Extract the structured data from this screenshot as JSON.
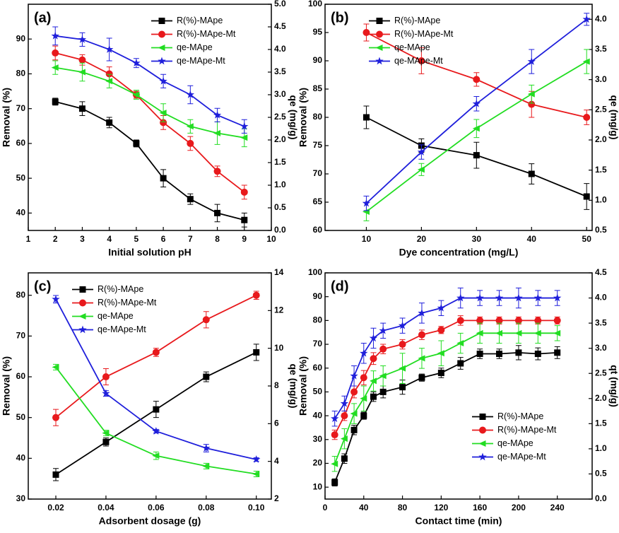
{
  "chart_data": [
    {
      "type": "line",
      "panel_label": "(a)",
      "xlabel": "Initial solution pH",
      "ylabel": "Removal (%)",
      "y2label": "qe (mg/g)",
      "xlim": [
        1,
        10
      ],
      "xticks": [
        1,
        2,
        3,
        4,
        5,
        6,
        7,
        8,
        9,
        10
      ],
      "ylim": [
        35,
        100
      ],
      "yticks": [
        40,
        50,
        60,
        70,
        80,
        90
      ],
      "y2lim": [
        0,
        5
      ],
      "y2ticks": [
        {
          "value": 0,
          "label": "0.0"
        },
        0.5,
        {
          "value": 1,
          "label": "1.0"
        },
        1.5,
        {
          "value": 2,
          "label": "2.0"
        },
        2.5,
        {
          "value": 3,
          "label": "3.0"
        },
        3.5,
        {
          "value": 4,
          "label": "4.0"
        },
        4.5,
        {
          "value": 5,
          "label": "5.0"
        }
      ],
      "legend": "upper right",
      "x": [
        2,
        3,
        4,
        5,
        6,
        7,
        8,
        9
      ],
      "series": [
        {
          "name": "R(%)-MApe",
          "color": "#000000",
          "marker": "square",
          "axis": "y",
          "values": [
            72,
            70,
            66,
            60,
            50,
            44,
            40,
            38
          ],
          "errors": [
            1,
            2,
            1.5,
            1,
            2.5,
            1.5,
            2.5,
            2
          ]
        },
        {
          "name": "R(%)-MApe-Mt",
          "color": "#e8191c",
          "marker": "circle",
          "axis": "y",
          "values": [
            86,
            84,
            80,
            74,
            66,
            60,
            52,
            46
          ],
          "errors": [
            2,
            1.5,
            2,
            1,
            2,
            2,
            1.5,
            2
          ]
        },
        {
          "name": "qe-MApe",
          "color": "#22dd22",
          "marker": "triangle",
          "axis": "y2",
          "values": [
            3.6,
            3.5,
            3.3,
            3.0,
            2.6,
            2.3,
            2.15,
            2.05
          ],
          "errors": [
            0.15,
            0.2,
            0.15,
            0.1,
            0.2,
            0.15,
            0.25,
            0.2
          ]
        },
        {
          "name": "qe-MApe-Mt",
          "color": "#1f1fdb",
          "marker": "star",
          "axis": "y2",
          "values": [
            4.3,
            4.22,
            4.0,
            3.7,
            3.3,
            3.0,
            2.55,
            2.3
          ],
          "errors": [
            0.2,
            0.15,
            0.25,
            0.1,
            0.15,
            0.2,
            0.15,
            0.15
          ]
        }
      ]
    },
    {
      "type": "line",
      "panel_label": "(b)",
      "xlabel": "Dye concentration (mg/L)",
      "ylabel": "Removal (%)",
      "y2label": "qe (mg/g)",
      "xlim": [
        2.5,
        51
      ],
      "xticks": [
        10,
        20,
        30,
        40,
        50
      ],
      "ylim": [
        60,
        100
      ],
      "yticks": [
        60,
        65,
        70,
        75,
        80,
        85,
        90,
        95,
        100
      ],
      "y2lim": [
        0.5,
        4.25
      ],
      "y2ticks": [
        0.5,
        {
          "value": 1,
          "label": "1.0"
        },
        1.5,
        {
          "value": 2,
          "label": "2.0"
        },
        2.5,
        {
          "value": 3,
          "label": "3.0"
        },
        3.5,
        {
          "value": 4,
          "label": "4.0"
        }
      ],
      "legend": "upper left",
      "x": [
        10,
        20,
        30,
        40,
        50
      ],
      "series": [
        {
          "name": "R(%)-MApe",
          "color": "#000000",
          "marker": "square",
          "axis": "y",
          "values": [
            80,
            75,
            73.3,
            70,
            66
          ],
          "errors": [
            2,
            1.2,
            2.3,
            1.8,
            2.3
          ]
        },
        {
          "name": "R(%)-MApe-Mt",
          "color": "#e8191c",
          "marker": "circle",
          "axis": "y",
          "values": [
            95,
            90,
            86.7,
            82.3,
            80
          ],
          "errors": [
            1.5,
            2.3,
            1.2,
            2.3,
            1.3
          ]
        },
        {
          "name": "qe-MApe",
          "color": "#22dd22",
          "marker": "triangle",
          "axis": "y2",
          "values": [
            0.81,
            1.51,
            2.19,
            2.76,
            3.3
          ],
          "errors": [
            0.15,
            0.1,
            0.15,
            0.15,
            0.2
          ]
        },
        {
          "name": "qe-MApe-Mt",
          "color": "#1f1fdb",
          "marker": "star",
          "axis": "y2",
          "values": [
            0.95,
            1.8,
            2.6,
            3.3,
            4.0
          ],
          "errors": [
            0.12,
            0.12,
            0.12,
            0.2,
            0.1
          ]
        }
      ]
    },
    {
      "type": "line",
      "panel_label": "(c)",
      "xlabel": "Adsorbent dosage (g)",
      "ylabel": "Removal (%)",
      "y2label": "qe (mg/g)",
      "xlim": [
        0.009,
        0.106
      ],
      "xticks": [
        0.02,
        0.04,
        0.06,
        0.08,
        {
          "value": 0.1,
          "label": "0.10"
        }
      ],
      "ylim": [
        30,
        85.5
      ],
      "yticks": [
        30,
        40,
        50,
        60,
        70,
        80
      ],
      "y2lim": [
        2,
        14
      ],
      "y2ticks": [
        2,
        4,
        6,
        8,
        10,
        12,
        14
      ],
      "legend": "upper left",
      "x": [
        0.02,
        0.04,
        0.06,
        0.08,
        0.1
      ],
      "series": [
        {
          "name": "R(%)-MApe",
          "color": "#000000",
          "marker": "square",
          "axis": "y",
          "values": [
            36,
            44,
            52,
            60,
            66
          ],
          "errors": [
            1.5,
            1,
            2,
            1.2,
            2
          ]
        },
        {
          "name": "R(%)-MApe-Mt",
          "color": "#e8191c",
          "marker": "circle",
          "axis": "y",
          "values": [
            50,
            60,
            66,
            74,
            80
          ],
          "errors": [
            2,
            2,
            1,
            2,
            1
          ]
        },
        {
          "name": "qe-MApe",
          "color": "#22dd22",
          "marker": "triangle",
          "axis": "y2",
          "values": [
            9.0,
            5.5,
            4.3,
            3.75,
            3.33
          ],
          "errors": [
            0.15,
            0.15,
            0.2,
            0.15,
            0.15
          ]
        },
        {
          "name": "qe-MApe-Mt",
          "color": "#1f1fdb",
          "marker": "star",
          "axis": "y2",
          "values": [
            12.6,
            7.6,
            5.6,
            4.7,
            4.1
          ],
          "errors": [
            0.2,
            0.15,
            0.1,
            0.2,
            0.1
          ]
        }
      ]
    },
    {
      "type": "line",
      "panel_label": "(d)",
      "xlabel": "Contact time (min)",
      "ylabel": "Removal (%)",
      "y2label": "qt (mg/g)",
      "xlim": [
        0,
        276
      ],
      "xticks": [
        0,
        40,
        80,
        120,
        160,
        200,
        240
      ],
      "ylim": [
        5,
        100
      ],
      "yticks": [
        10,
        20,
        30,
        40,
        50,
        60,
        70,
        80,
        90,
        100
      ],
      "y2lim": [
        0,
        4.5
      ],
      "y2ticks": [
        {
          "value": 0,
          "label": "0.0"
        },
        0.5,
        {
          "value": 1,
          "label": "1.0"
        },
        1.5,
        {
          "value": 2,
          "label": "2.0"
        },
        2.5,
        {
          "value": 3,
          "label": "3.0"
        },
        3.5,
        {
          "value": 4,
          "label": "4.0"
        },
        4.5
      ],
      "legend": "lower right",
      "x": [
        10,
        20,
        30,
        40,
        50,
        60,
        80,
        100,
        120,
        140,
        160,
        180,
        200,
        220,
        240
      ],
      "series": [
        {
          "name": "R(%)-MApe",
          "color": "#000000",
          "marker": "square",
          "axis": "y",
          "values": [
            12,
            22,
            34,
            40,
            48,
            50,
            52,
            56,
            58,
            62,
            66,
            66,
            66.5,
            66,
            66.5
          ],
          "errors": [
            1.5,
            2,
            2,
            1.5,
            2,
            2.5,
            3,
            1.5,
            2,
            2.5,
            2,
            2,
            3,
            2.5,
            2.5
          ]
        },
        {
          "name": "R(%)-MApe-Mt",
          "color": "#e8191c",
          "marker": "circle",
          "axis": "y",
          "values": [
            32,
            40,
            50,
            56,
            64,
            68,
            70,
            74,
            76,
            80,
            80,
            80,
            80,
            80,
            80
          ],
          "errors": [
            2,
            2,
            2.5,
            3,
            2.5,
            2,
            2,
            2,
            1.5,
            2,
            1.5,
            1.5,
            1.5,
            1.5,
            1.5
          ]
        },
        {
          "name": "qe-MApe",
          "color": "#22dd22",
          "marker": "triangle",
          "axis": "y2",
          "values": [
            0.7,
            1.2,
            1.7,
            2.0,
            2.35,
            2.45,
            2.6,
            2.8,
            2.9,
            3.1,
            3.3,
            3.3,
            3.3,
            3.3,
            3.3
          ],
          "errors": [
            0.15,
            0.2,
            0.2,
            0.25,
            0.2,
            0.2,
            0.3,
            0.2,
            0.25,
            0.2,
            0.2,
            0.2,
            0.2,
            0.2,
            0.15
          ]
        },
        {
          "name": "qe-MApe-Mt",
          "color": "#1f1fdb",
          "marker": "star",
          "axis": "y2",
          "values": [
            1.6,
            1.9,
            2.45,
            2.9,
            3.2,
            3.35,
            3.45,
            3.7,
            3.8,
            4.0,
            4.0,
            4.0,
            4.0,
            4.0,
            4.0
          ],
          "errors": [
            0.15,
            0.15,
            0.2,
            0.2,
            0.2,
            0.15,
            0.15,
            0.2,
            0.15,
            0.2,
            0.15,
            0.15,
            0.2,
            0.15,
            0.15
          ]
        }
      ]
    }
  ]
}
